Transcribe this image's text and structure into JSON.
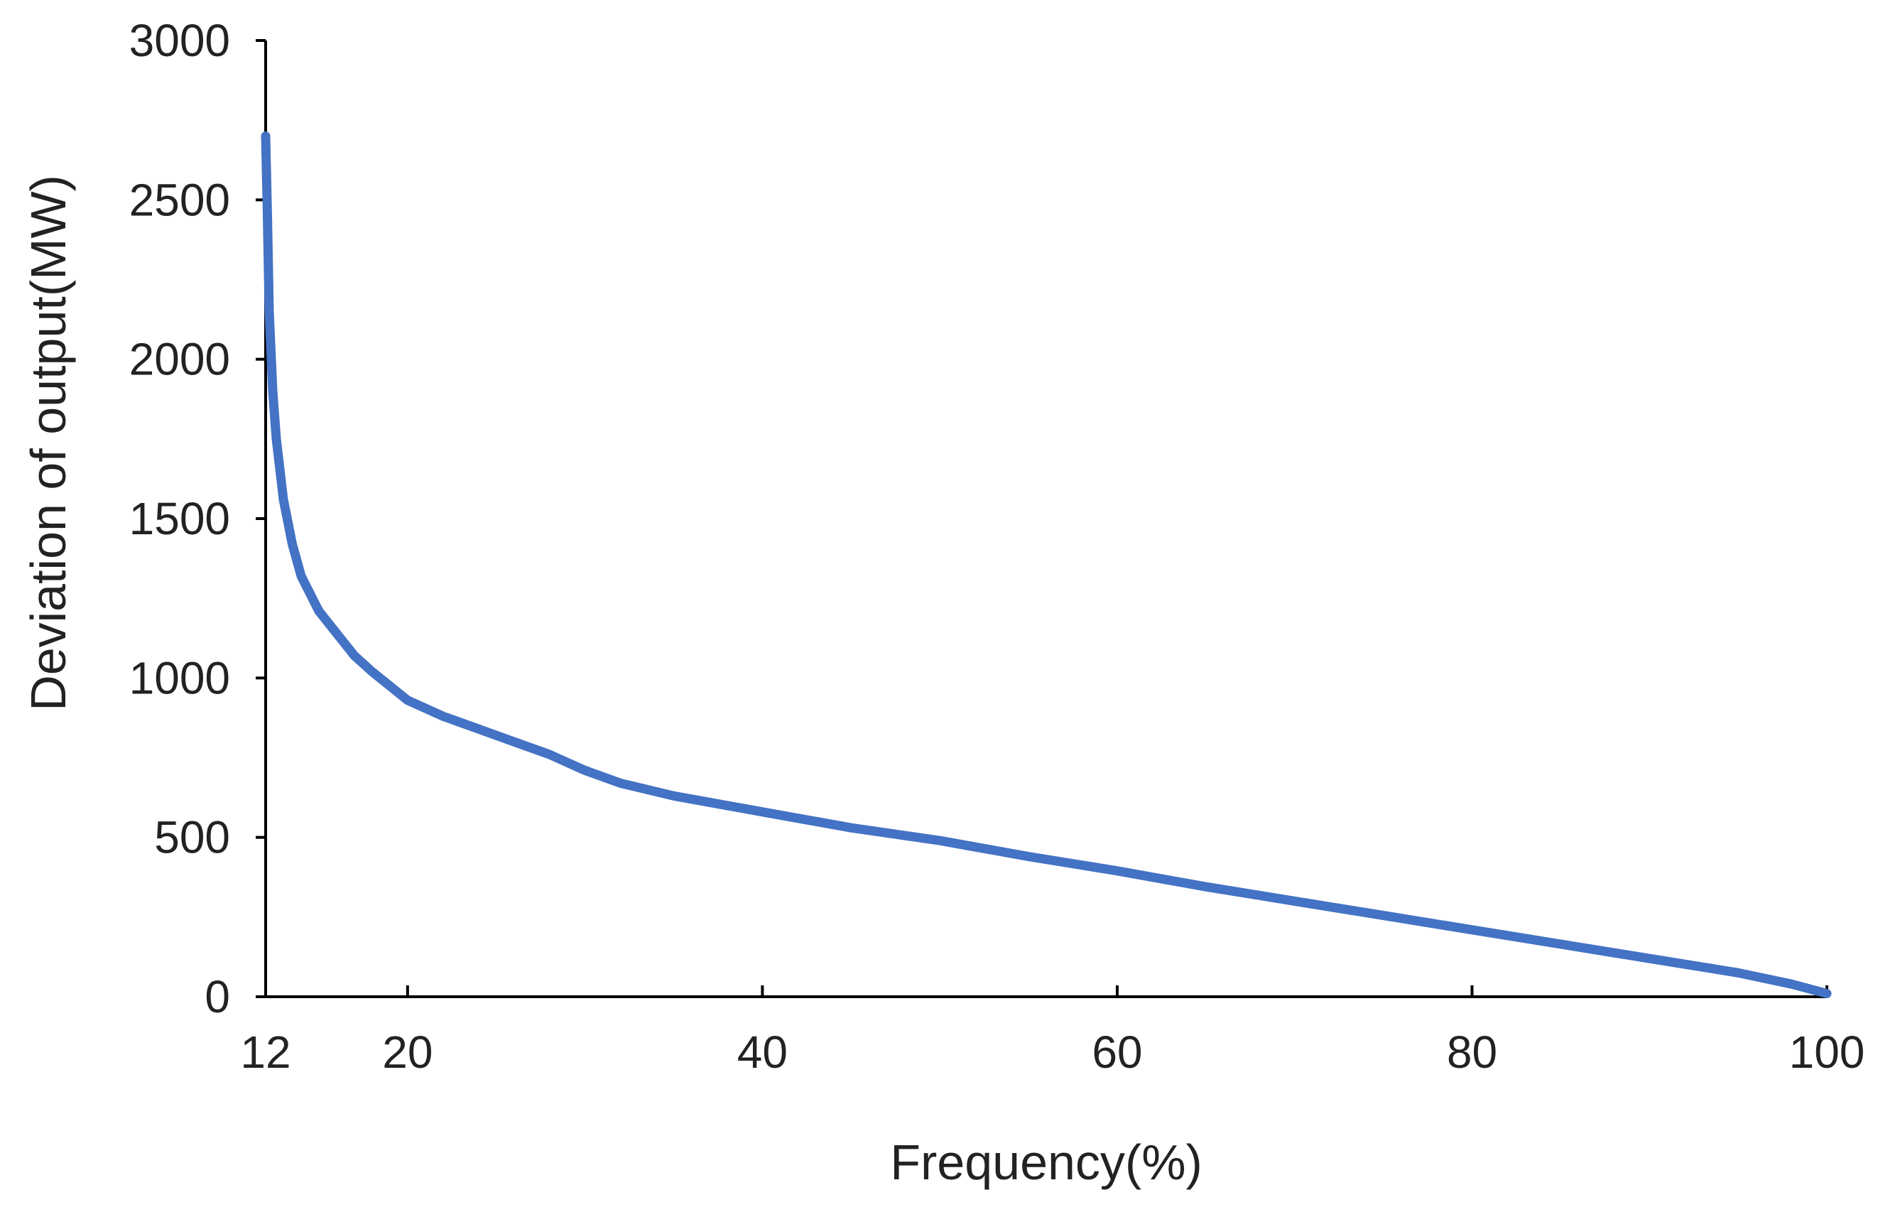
{
  "chart_data": {
    "type": "line",
    "title": "",
    "xlabel": "Frequency(%)",
    "ylabel": "Deviation of output(MW)",
    "xlim": [
      12,
      100
    ],
    "ylim": [
      0,
      3000
    ],
    "x_ticks": [
      12,
      20,
      40,
      60,
      80,
      100
    ],
    "x_tick_labels": [
      "12",
      "20",
      "40",
      "60",
      "80",
      "100"
    ],
    "y_ticks": [
      0,
      500,
      1000,
      1500,
      2000,
      2500,
      3000
    ],
    "y_tick_labels": [
      "0",
      "500",
      "1000",
      "1500",
      "2000",
      "2500",
      "3000"
    ],
    "grid": false,
    "line_color": "#4472C4",
    "axis_color": "#000000",
    "series": [
      {
        "x": [
          12.0,
          12.1,
          12.2,
          12.4,
          12.6,
          13.0,
          13.5,
          14.0,
          15.0,
          16.0,
          17.0,
          18.0,
          20.0,
          22.0,
          24.0,
          26.0,
          28.0,
          30.0,
          32.0,
          35.0,
          40.0,
          45.0,
          50.0,
          55.0,
          60.0,
          65.0,
          70.0,
          75.0,
          80.0,
          85.0,
          90.0,
          95.0,
          98.0,
          100.0
        ],
        "y": [
          2700,
          2450,
          2150,
          1900,
          1750,
          1560,
          1420,
          1320,
          1210,
          1140,
          1070,
          1020,
          930,
          880,
          840,
          800,
          760,
          710,
          670,
          630,
          580,
          530,
          490,
          440,
          395,
          345,
          300,
          255,
          210,
          165,
          120,
          75,
          40,
          10
        ]
      }
    ]
  }
}
